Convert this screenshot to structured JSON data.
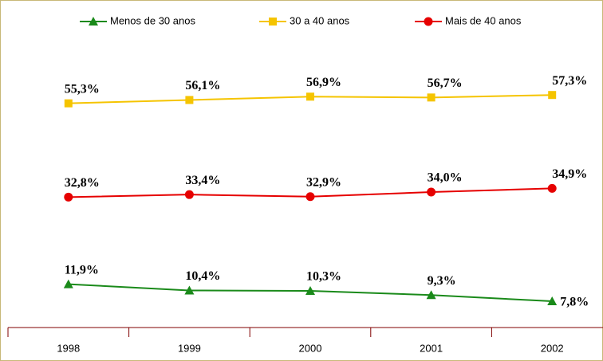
{
  "chart_data": {
    "type": "line",
    "categories": [
      "1998",
      "1999",
      "2000",
      "2001",
      "2002"
    ],
    "series": [
      {
        "name": "Menos de 30 anos",
        "color": "#1a8a1a",
        "marker": "triangle",
        "values": [
          11.9,
          10.4,
          10.3,
          9.3,
          7.8
        ],
        "value_labels": [
          "11,9%",
          "10,4%",
          "10,3%",
          "9,3%",
          "7,8%"
        ]
      },
      {
        "name": "30 a 40 anos",
        "color": "#f5c400",
        "marker": "square",
        "values": [
          55.3,
          56.1,
          56.9,
          56.7,
          57.3
        ],
        "value_labels": [
          "55,3%",
          "56,1%",
          "56,9%",
          "56,7%",
          "57,3%"
        ]
      },
      {
        "name": "Mais de 40 anos",
        "color": "#e60000",
        "marker": "circle",
        "values": [
          32.8,
          33.4,
          32.9,
          34.0,
          34.9
        ],
        "value_labels": [
          "32,8%",
          "33,4%",
          "32,9%",
          "34,0%",
          "34,9%"
        ]
      }
    ],
    "ylim": [
      1.5,
      77.8
    ],
    "legend": "top"
  }
}
